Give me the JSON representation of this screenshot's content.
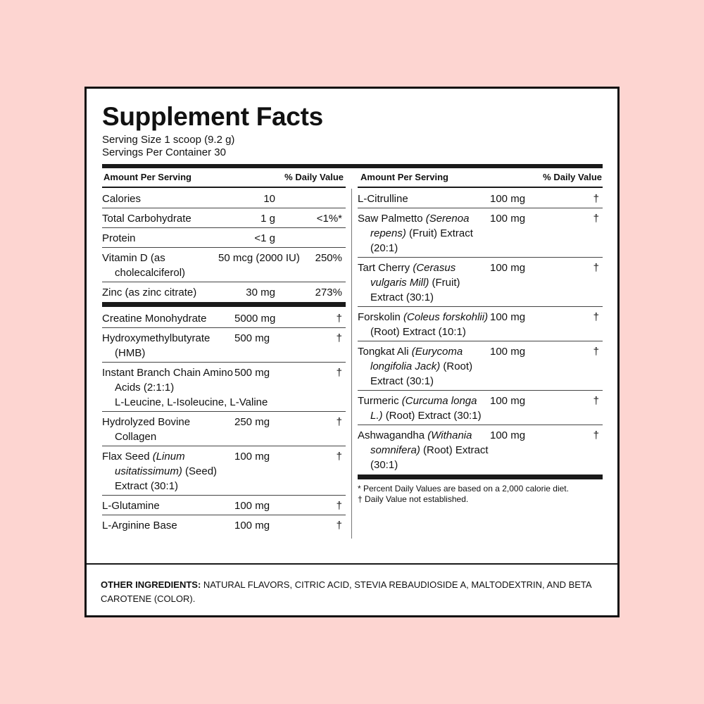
{
  "title": "Supplement Facts",
  "serving_size": "Serving Size 1 scoop (9.2 g)",
  "servings_per_container": "Servings Per Container 30",
  "left": {
    "header": {
      "amount": "Amount Per Serving",
      "dv": "% Daily Value"
    },
    "nutrients": [
      {
        "name": "Calories",
        "amount": "10"
      },
      {
        "name": "Total Carbohydrate",
        "amount": "1 g",
        "dv": "<1%*"
      },
      {
        "name": "Protein",
        "amount": "<1 g"
      },
      {
        "name": "Vitamin D (as cholecalciferol)",
        "amount": "50 mcg (2000 IU)",
        "dv": "250%"
      },
      {
        "name": "Zinc (as zinc citrate)",
        "amount": "30 mg",
        "dv": "273%"
      }
    ],
    "ingredients": [
      {
        "name": "Creatine Monohydrate",
        "amount": "5000 mg",
        "dv": "†"
      },
      {
        "name": "Hydroxymethylbutyrate (HMB)",
        "amount": "500 mg",
        "dv": "†"
      },
      {
        "name": "Instant Branch Chain Amino Acids (2:1:1)",
        "detail": "L-Leucine, L-Isoleucine, L-Valine",
        "amount": "500 mg",
        "dv": "†"
      },
      {
        "name": "Hydrolyzed Bovine Collagen",
        "amount": "250 mg",
        "dv": "†"
      },
      {
        "name": "Flax Seed",
        "latin": "(Linum usitatissimum)",
        "part": "(Seed) Extract (30:1)",
        "amount": "100 mg",
        "dv": "†"
      },
      {
        "name": "L-Glutamine",
        "amount": "100 mg",
        "dv": "†"
      },
      {
        "name": "L-Arginine Base",
        "amount": "100 mg",
        "dv": "†"
      }
    ]
  },
  "right": {
    "header": {
      "amount": "Amount Per Serving",
      "dv": "% Daily Value"
    },
    "ingredients": [
      {
        "name": "L-Citrulline",
        "amount": "100 mg",
        "dv": "†"
      },
      {
        "name": "Saw Palmetto",
        "latin": "(Serenoa repens)",
        "part": "(Fruit) Extract (20:1)",
        "amount": "100 mg",
        "dv": "†"
      },
      {
        "name": "Tart Cherry",
        "latin": "(Cerasus vulgaris Mill)",
        "part": "(Fruit) Extract (30:1)",
        "amount": "100 mg",
        "dv": "†"
      },
      {
        "name": "Forskolin",
        "latin": "(Coleus forskohlii)",
        "part": "(Root) Extract (10:1)",
        "amount": "100 mg",
        "dv": "†"
      },
      {
        "name": "Tongkat Ali",
        "latin": "(Eurycoma longifolia Jack)",
        "part": "(Root) Extract (30:1)",
        "amount": "100 mg",
        "dv": "†"
      },
      {
        "name": "Turmeric",
        "latin": "(Curcuma longa L.)",
        "part": "(Root) Extract (30:1)",
        "amount": "100 mg",
        "dv": "†"
      },
      {
        "name": "Ashwagandha",
        "latin": "(Withania somnifera)",
        "part": "(Root) Extract (30:1)",
        "amount": "100 mg",
        "dv": "†"
      }
    ],
    "footnotes": [
      "* Percent Daily Values are based on a 2,000 calorie diet.",
      "† Daily Value not established."
    ]
  },
  "other_ingredients": {
    "label": "OTHER INGREDIENTS:",
    "text": "NATURAL FLAVORS, CITRIC ACID, STEVIA REBAUDIOSIDE A, MALTODEXTRIN, AND BETA CAROTENE (COLOR)."
  }
}
